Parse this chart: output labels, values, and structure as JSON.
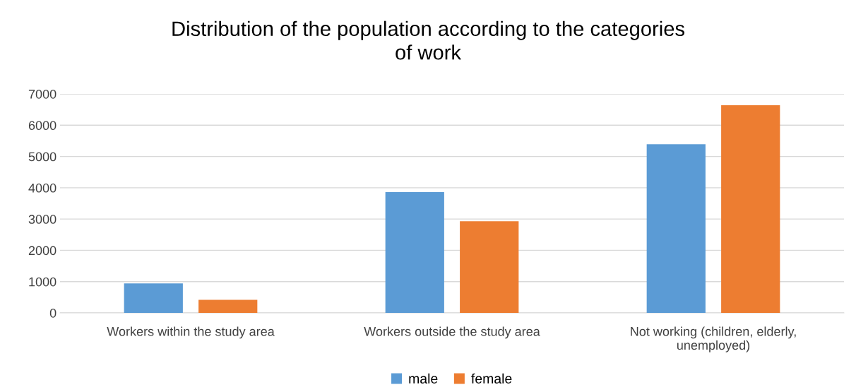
{
  "chart_data": {
    "type": "bar",
    "title": "Distribution of the population according to the categories of work",
    "categories": [
      "Workers within the study area",
      "Workers outside the study area",
      "Not working (children, elderly, unemployed)"
    ],
    "series": [
      {
        "name": "male",
        "color": "#5b9bd5",
        "values": [
          940,
          3860,
          5390
        ]
      },
      {
        "name": "female",
        "color": "#ed7d31",
        "values": [
          420,
          2930,
          6640
        ]
      }
    ],
    "ylim": [
      0,
      7000
    ],
    "yticks": [
      0,
      1000,
      2000,
      3000,
      4000,
      5000,
      6000,
      7000
    ],
    "grid": "y",
    "legend": "bottom"
  }
}
